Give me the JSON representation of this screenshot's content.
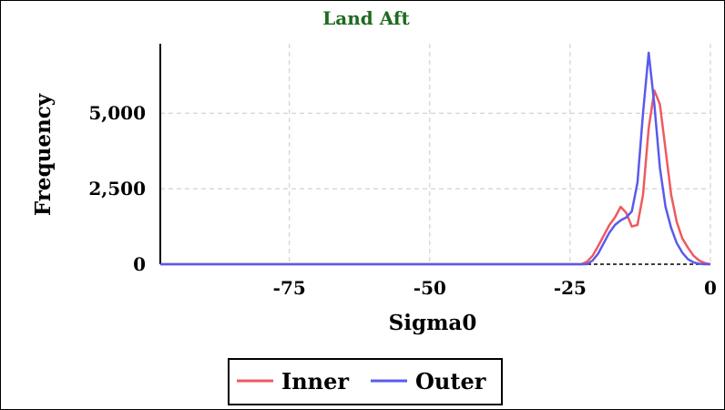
{
  "chart_data": {
    "type": "line",
    "title": "Land Aft",
    "xlabel": "Sigma0",
    "ylabel": "Frequency",
    "xlim": [
      -98,
      0
    ],
    "ylim": [
      0,
      7300
    ],
    "x_ticks": [
      -75,
      -50,
      -25,
      0
    ],
    "x_tick_labels": [
      "-75",
      "-50",
      "-25",
      "0"
    ],
    "y_ticks": [
      0,
      2500,
      5000
    ],
    "y_tick_labels": [
      "0",
      "2,500",
      "5,000"
    ],
    "grid": true,
    "legend_position": "bottom-center",
    "series": [
      {
        "name": "Inner",
        "color": "#ee5a5f",
        "points": [
          [
            -98,
            0
          ],
          [
            -23,
            0
          ],
          [
            -22,
            80
          ],
          [
            -21,
            280
          ],
          [
            -20,
            600
          ],
          [
            -19,
            950
          ],
          [
            -18,
            1300
          ],
          [
            -17,
            1550
          ],
          [
            -16,
            1900
          ],
          [
            -15,
            1700
          ],
          [
            -14,
            1250
          ],
          [
            -13,
            1300
          ],
          [
            -12,
            2300
          ],
          [
            -11,
            4500
          ],
          [
            -10,
            5750
          ],
          [
            -9,
            5300
          ],
          [
            -8,
            3800
          ],
          [
            -7,
            2300
          ],
          [
            -6,
            1400
          ],
          [
            -5,
            850
          ],
          [
            -4,
            550
          ],
          [
            -3,
            280
          ],
          [
            -2,
            120
          ],
          [
            -1,
            40
          ],
          [
            0,
            0
          ]
        ]
      },
      {
        "name": "Outer",
        "color": "#5a5aee",
        "points": [
          [
            -98,
            0
          ],
          [
            -22,
            0
          ],
          [
            -21,
            120
          ],
          [
            -20,
            350
          ],
          [
            -19,
            700
          ],
          [
            -18,
            1050
          ],
          [
            -17,
            1300
          ],
          [
            -16,
            1450
          ],
          [
            -15,
            1550
          ],
          [
            -14,
            1750
          ],
          [
            -13,
            2700
          ],
          [
            -12,
            5000
          ],
          [
            -11,
            7000
          ],
          [
            -10,
            5300
          ],
          [
            -9,
            3200
          ],
          [
            -8,
            1900
          ],
          [
            -7,
            1200
          ],
          [
            -6,
            700
          ],
          [
            -5,
            380
          ],
          [
            -4,
            170
          ],
          [
            -3,
            60
          ],
          [
            -2,
            15
          ],
          [
            -1,
            0
          ],
          [
            0,
            0
          ]
        ]
      }
    ]
  }
}
